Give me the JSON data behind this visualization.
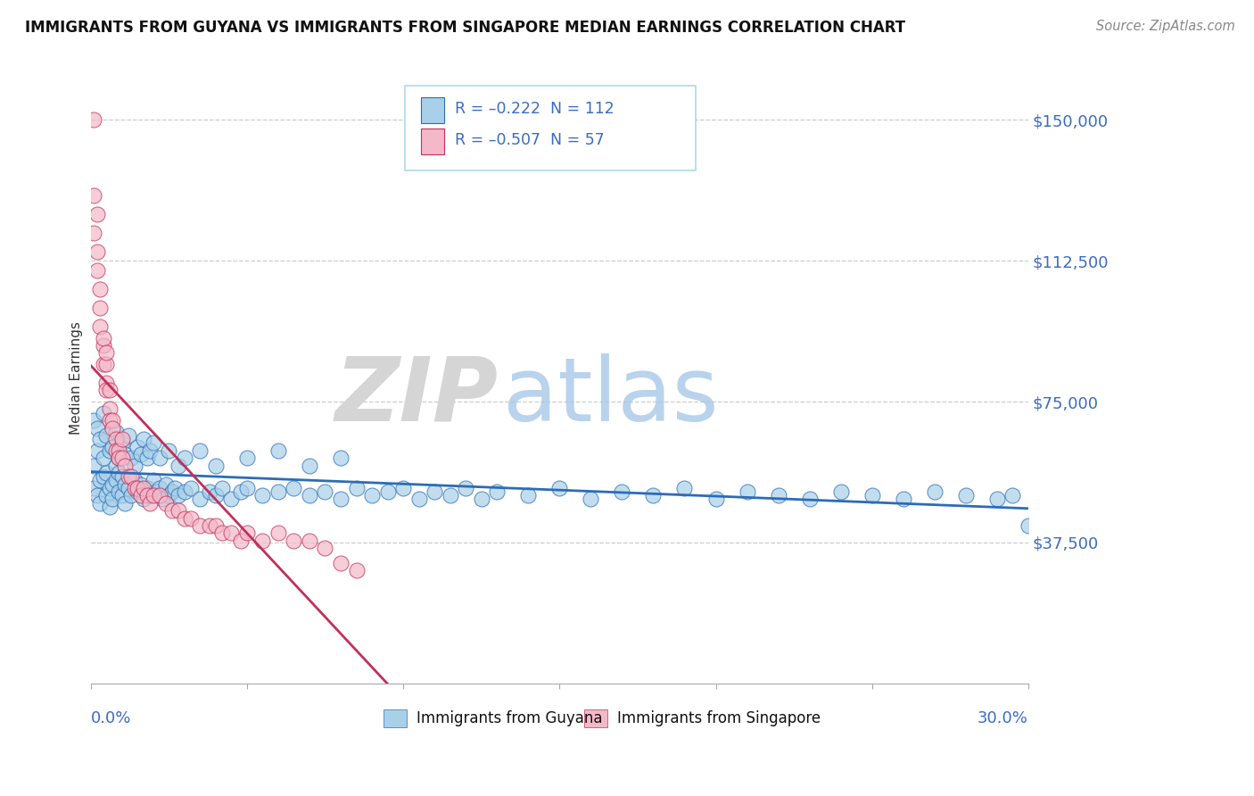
{
  "title": "IMMIGRANTS FROM GUYANA VS IMMIGRANTS FROM SINGAPORE MEDIAN EARNINGS CORRELATION CHART",
  "source": "Source: ZipAtlas.com",
  "ylabel": "Median Earnings",
  "xlim": [
    0.0,
    0.3
  ],
  "ylim": [
    0,
    162500
  ],
  "yticks": [
    0,
    37500,
    75000,
    112500,
    150000
  ],
  "ytick_labels": [
    "",
    "$37,500",
    "$75,000",
    "$112,500",
    "$150,000"
  ],
  "legend_r1": "R = –0.222  N = 112",
  "legend_r2": "R = –0.507  N = 57",
  "guyana_color": "#a8d0e8",
  "singapore_color": "#f5b8c8",
  "trend_guyana_color": "#2b6cb8",
  "trend_singapore_color": "#c0305a",
  "axis_color": "#3b6cc0",
  "watermark_zip": "ZIP",
  "watermark_atlas": "atlas",
  "legend_bottom_guyana": "Immigrants from Guyana",
  "legend_bottom_singapore": "Immigrants from Singapore",
  "guyana_x": [
    0.001,
    0.001,
    0.002,
    0.002,
    0.003,
    0.003,
    0.004,
    0.004,
    0.005,
    0.005,
    0.006,
    0.006,
    0.007,
    0.007,
    0.008,
    0.008,
    0.009,
    0.009,
    0.01,
    0.01,
    0.011,
    0.011,
    0.012,
    0.013,
    0.014,
    0.015,
    0.016,
    0.017,
    0.018,
    0.019,
    0.02,
    0.021,
    0.022,
    0.023,
    0.024,
    0.025,
    0.026,
    0.027,
    0.028,
    0.03,
    0.032,
    0.035,
    0.038,
    0.04,
    0.042,
    0.045,
    0.048,
    0.05,
    0.055,
    0.06,
    0.065,
    0.07,
    0.075,
    0.08,
    0.085,
    0.09,
    0.095,
    0.1,
    0.105,
    0.11,
    0.115,
    0.12,
    0.125,
    0.13,
    0.14,
    0.15,
    0.16,
    0.17,
    0.18,
    0.19,
    0.2,
    0.21,
    0.22,
    0.23,
    0.24,
    0.25,
    0.26,
    0.27,
    0.28,
    0.29,
    0.295,
    0.3,
    0.001,
    0.002,
    0.003,
    0.004,
    0.005,
    0.006,
    0.007,
    0.008,
    0.009,
    0.01,
    0.011,
    0.012,
    0.013,
    0.014,
    0.015,
    0.016,
    0.017,
    0.018,
    0.019,
    0.02,
    0.022,
    0.025,
    0.028,
    0.03,
    0.035,
    0.04,
    0.05,
    0.06,
    0.07,
    0.08
  ],
  "guyana_y": [
    52000,
    58000,
    50000,
    62000,
    54000,
    48000,
    55000,
    60000,
    56000,
    50000,
    52000,
    47000,
    53000,
    49000,
    54000,
    58000,
    51000,
    56000,
    50000,
    55000,
    48000,
    53000,
    52000,
    50000,
    54000,
    51000,
    53000,
    49000,
    52000,
    50000,
    54000,
    51000,
    52000,
    49000,
    53000,
    50000,
    51000,
    52000,
    50000,
    51000,
    52000,
    49000,
    51000,
    50000,
    52000,
    49000,
    51000,
    52000,
    50000,
    51000,
    52000,
    50000,
    51000,
    49000,
    52000,
    50000,
    51000,
    52000,
    49000,
    51000,
    50000,
    52000,
    49000,
    51000,
    50000,
    52000,
    49000,
    51000,
    50000,
    52000,
    49000,
    51000,
    50000,
    49000,
    51000,
    50000,
    49000,
    51000,
    50000,
    49000,
    50000,
    42000,
    70000,
    68000,
    65000,
    72000,
    66000,
    62000,
    63000,
    67000,
    60000,
    64000,
    61000,
    66000,
    60000,
    58000,
    63000,
    61000,
    65000,
    60000,
    62000,
    64000,
    60000,
    62000,
    58000,
    60000,
    62000,
    58000,
    60000,
    62000,
    58000,
    60000
  ],
  "singapore_x": [
    0.001,
    0.001,
    0.001,
    0.002,
    0.002,
    0.003,
    0.003,
    0.004,
    0.004,
    0.005,
    0.005,
    0.005,
    0.006,
    0.006,
    0.006,
    0.007,
    0.007,
    0.008,
    0.008,
    0.009,
    0.009,
    0.01,
    0.01,
    0.011,
    0.012,
    0.013,
    0.014,
    0.015,
    0.016,
    0.017,
    0.018,
    0.019,
    0.02,
    0.022,
    0.024,
    0.026,
    0.028,
    0.03,
    0.032,
    0.035,
    0.038,
    0.04,
    0.042,
    0.045,
    0.048,
    0.05,
    0.055,
    0.06,
    0.065,
    0.07,
    0.075,
    0.08,
    0.085,
    0.002,
    0.003,
    0.004,
    0.005
  ],
  "singapore_y": [
    150000,
    130000,
    120000,
    115000,
    110000,
    105000,
    95000,
    90000,
    85000,
    85000,
    80000,
    78000,
    78000,
    73000,
    70000,
    70000,
    68000,
    65000,
    62000,
    62000,
    60000,
    65000,
    60000,
    58000,
    55000,
    55000,
    52000,
    52000,
    50000,
    52000,
    50000,
    48000,
    50000,
    50000,
    48000,
    46000,
    46000,
    44000,
    44000,
    42000,
    42000,
    42000,
    40000,
    40000,
    38000,
    40000,
    38000,
    40000,
    38000,
    38000,
    36000,
    32000,
    30000,
    125000,
    100000,
    92000,
    88000
  ]
}
